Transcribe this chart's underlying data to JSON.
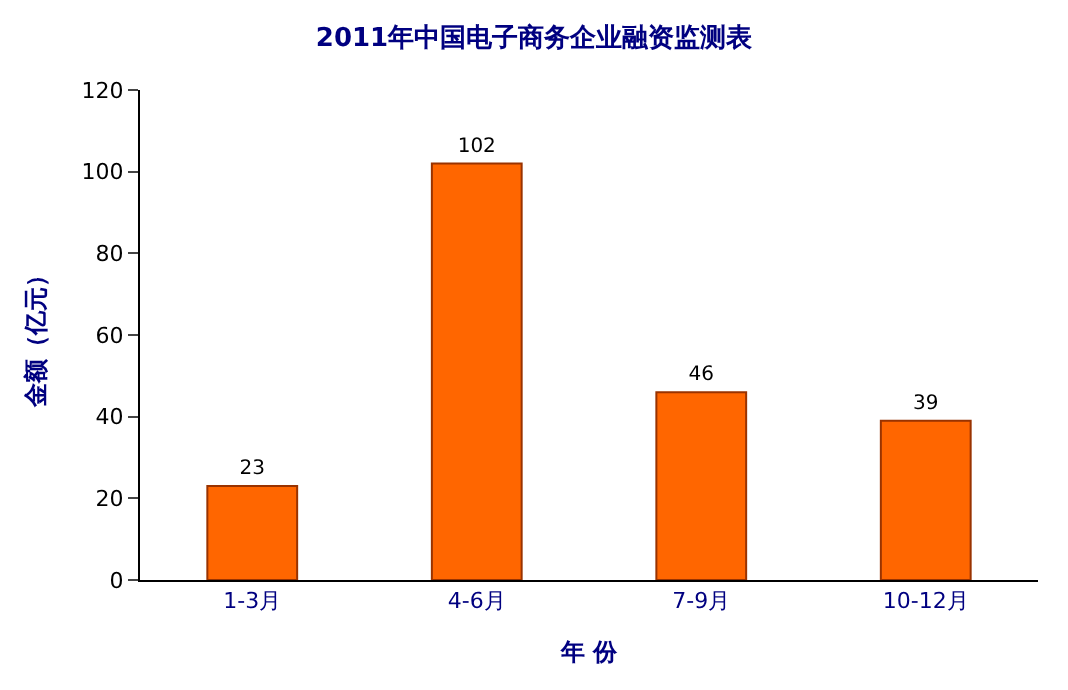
{
  "chart_data": {
    "type": "bar",
    "title": "2011年中国电子商务企业融资监测表",
    "xlabel": "年 份",
    "ylabel": "金额（亿元）",
    "categories": [
      "1-3月",
      "4-6月",
      "7-9月",
      "10-12月"
    ],
    "values": [
      23,
      102,
      46,
      39
    ],
    "color": "#ff6600",
    "ylim": [
      0,
      120
    ],
    "yticks": [
      0,
      20,
      40,
      60,
      80,
      100,
      120
    ],
    "data_labels": true
  }
}
